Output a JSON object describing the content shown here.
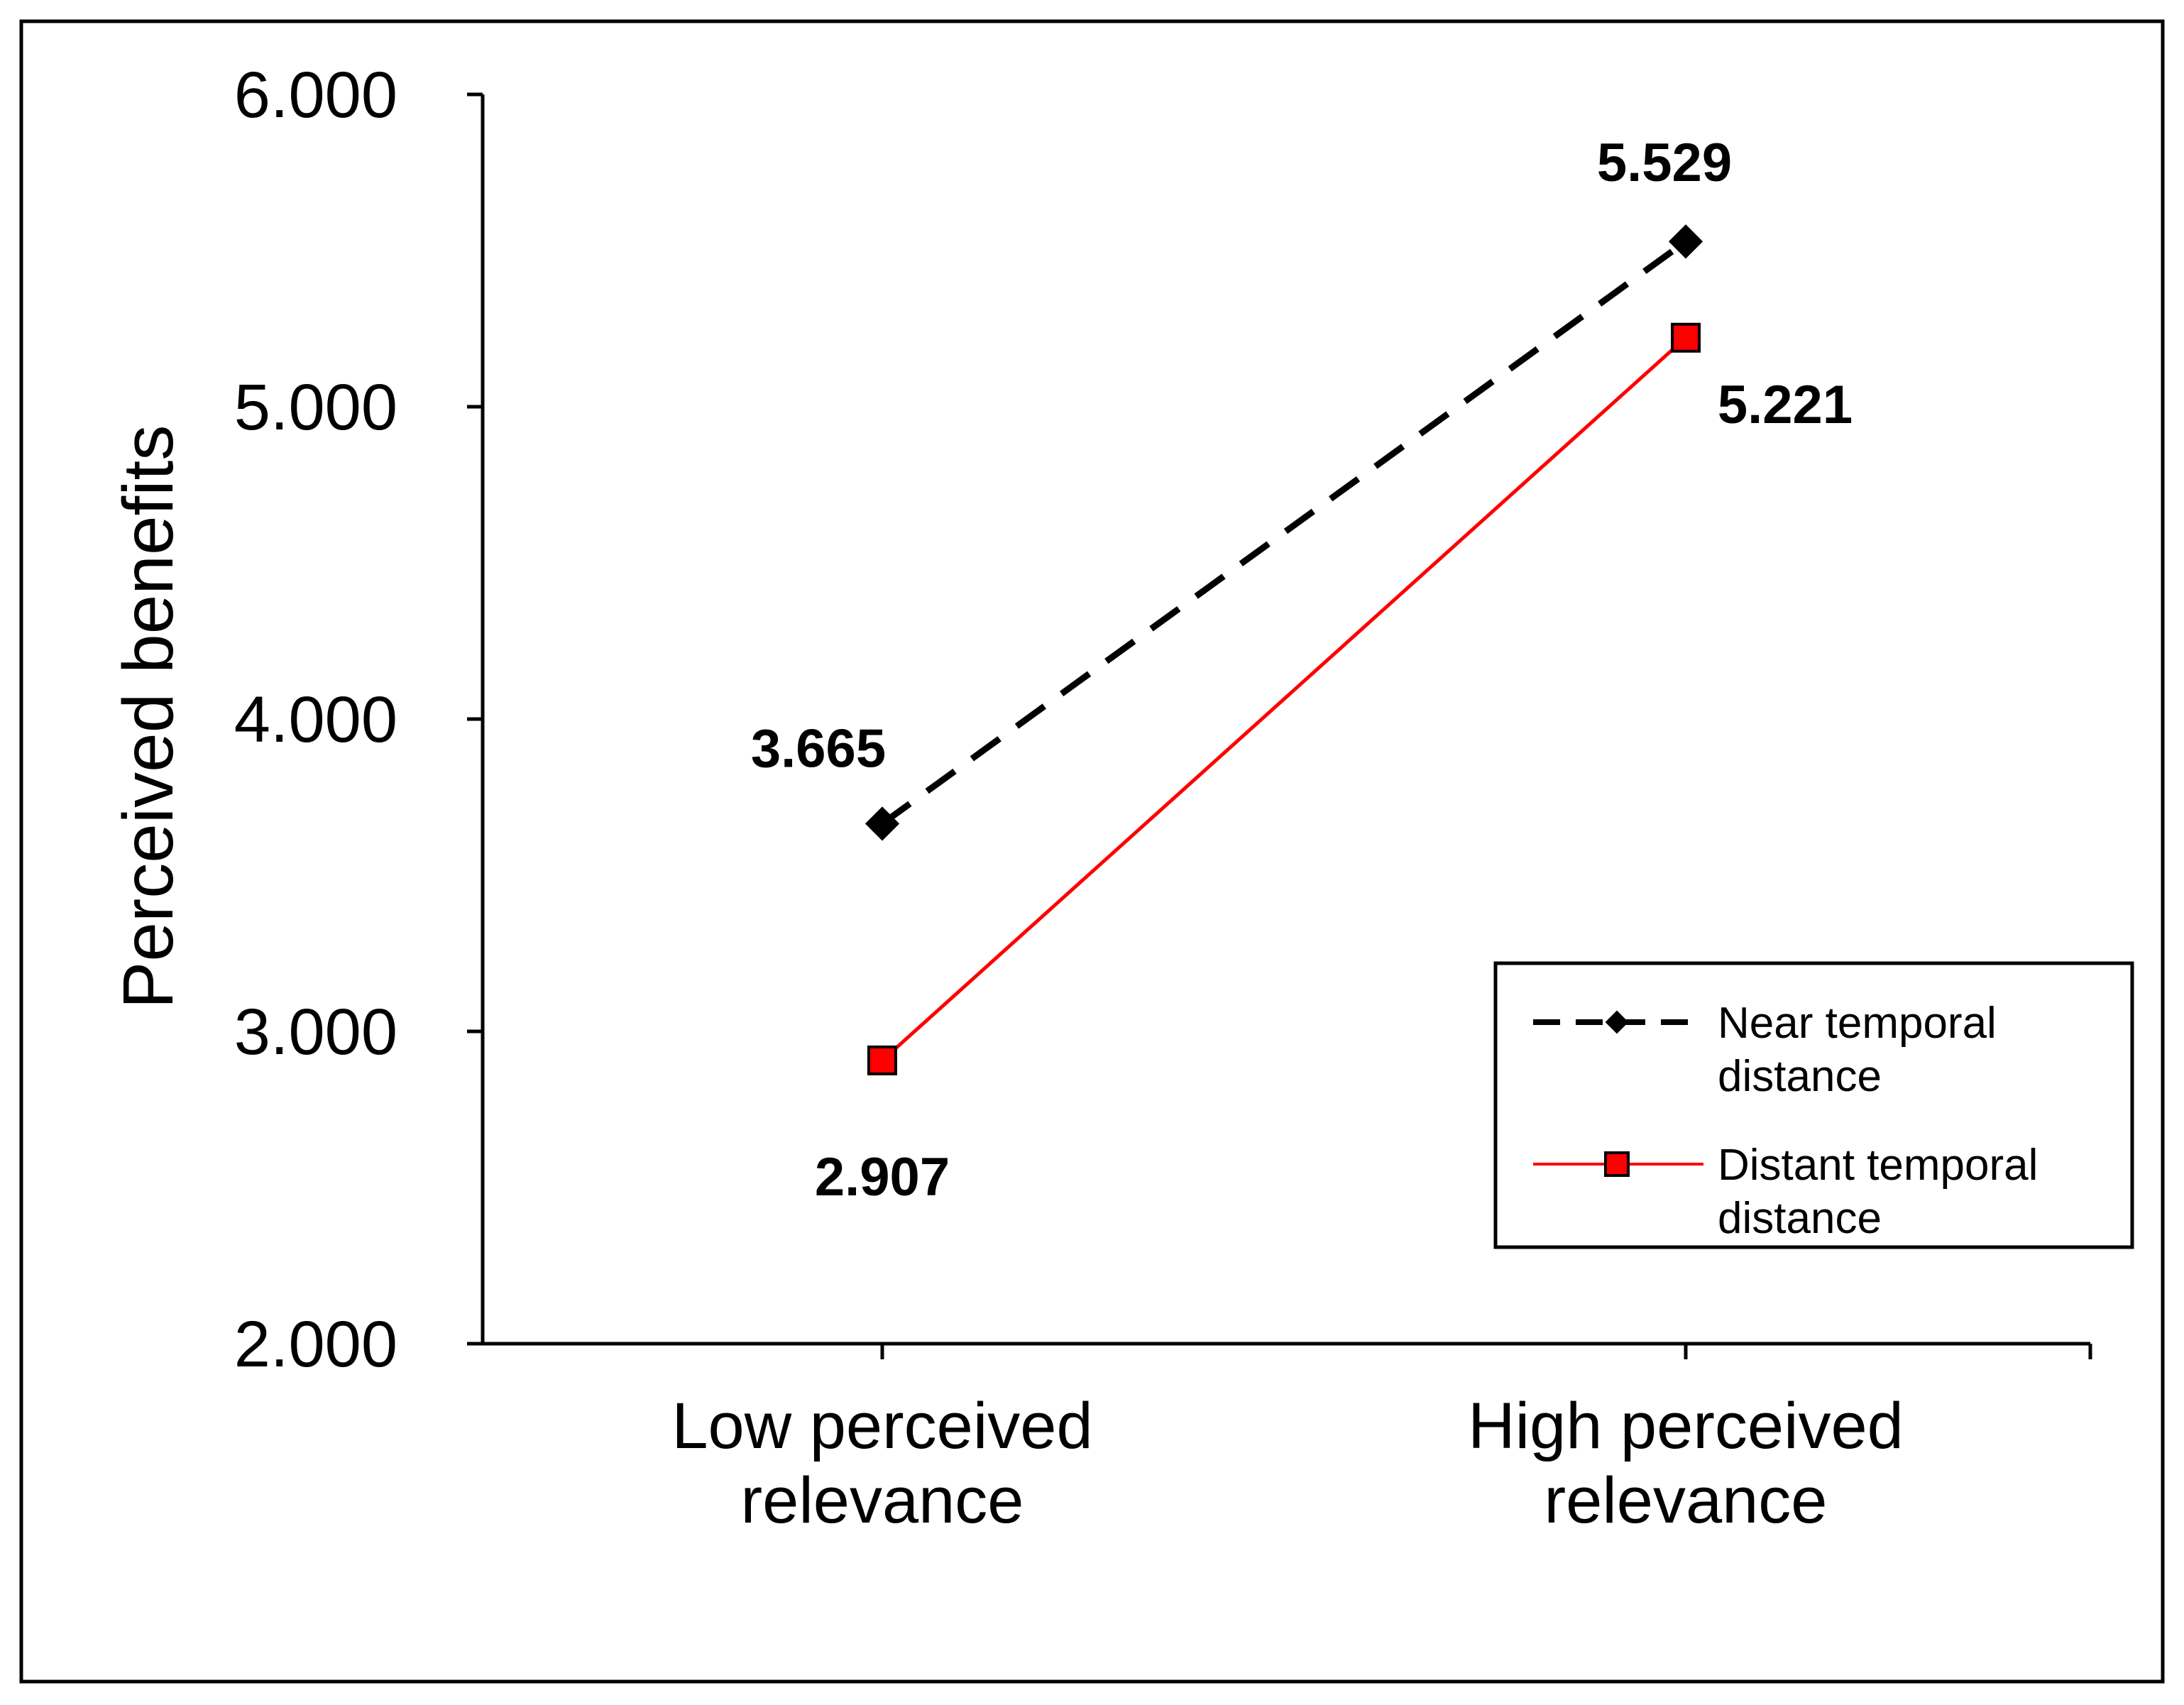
{
  "chart_data": {
    "type": "line",
    "ylabel": "Perceived  benefits",
    "xlabel": "",
    "ylim": [
      2.0,
      6.0
    ],
    "yticks": [
      2.0,
      3.0,
      4.0,
      5.0,
      6.0
    ],
    "ytick_labels": [
      "2.000",
      "3.000",
      "4.000",
      "5.000",
      "6.000"
    ],
    "categories": [
      [
        "Low perceived",
        "relevance"
      ],
      [
        "High perceived",
        "relevance"
      ]
    ],
    "series": [
      {
        "name": "Near temporal distance",
        "legend_lines": [
          "Near temporal",
          "distance"
        ],
        "values": [
          3.665,
          5.529
        ],
        "labels": [
          "3.665",
          "5.529"
        ],
        "color": "#000000",
        "line_style": "dashed",
        "marker": "diamond"
      },
      {
        "name": "Distant temporal distance",
        "legend_lines": [
          "Distant temporal",
          "distance"
        ],
        "values": [
          2.907,
          5.221
        ],
        "labels": [
          "2.907",
          "5.221"
        ],
        "color": "#ff0000",
        "line_style": "solid",
        "marker": "square"
      }
    ],
    "legend_position": "bottom-right",
    "grid": false
  }
}
